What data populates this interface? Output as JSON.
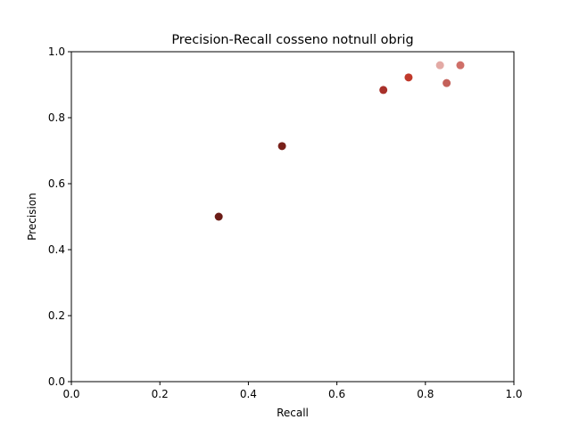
{
  "chart_data": {
    "type": "scatter",
    "title": "Precision-Recall cosseno notnull obrig",
    "xlabel": "Recall",
    "ylabel": "Precision",
    "xlim": [
      0.0,
      1.0
    ],
    "ylim": [
      0.0,
      1.0
    ],
    "xticks": [
      "0.0",
      "0.2",
      "0.4",
      "0.6",
      "0.8",
      "1.0"
    ],
    "yticks": [
      "0.0",
      "0.2",
      "0.4",
      "0.6",
      "0.8",
      "1.0"
    ],
    "grid": false,
    "points": [
      {
        "x": 0.333,
        "y": 0.5,
        "color": "#6b1c16"
      },
      {
        "x": 0.476,
        "y": 0.714,
        "color": "#78201a"
      },
      {
        "x": 0.705,
        "y": 0.884,
        "color": "#a8302a"
      },
      {
        "x": 0.762,
        "y": 0.922,
        "color": "#c0392b"
      },
      {
        "x": 0.848,
        "y": 0.905,
        "color": "#c4615a"
      },
      {
        "x": 0.833,
        "y": 0.959,
        "color": "#e3aaa5"
      },
      {
        "x": 0.879,
        "y": 0.959,
        "color": "#cf6f68"
      }
    ]
  }
}
